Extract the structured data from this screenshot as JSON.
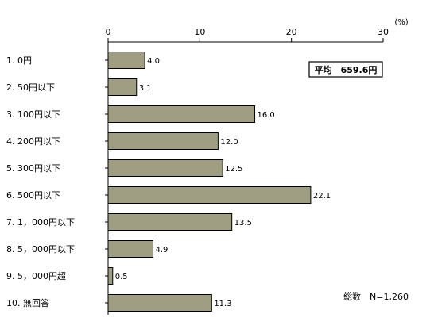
{
  "chart_data": {
    "type": "bar",
    "orientation": "horizontal",
    "categories": [
      "1. 0円",
      "2. 50円以下",
      "3. 100円以下",
      "4. 200円以下",
      "5. 300円以下",
      "6. 500円以下",
      "7. 1，000円以下",
      "8. 5，000円以下",
      "9. 5，000円超",
      "10. 無回答"
    ],
    "values": [
      4.0,
      3.1,
      16.0,
      12.0,
      12.5,
      22.1,
      13.5,
      4.9,
      0.5,
      11.3
    ],
    "value_labels": [
      "4.0",
      "3.1",
      "16.0",
      "12.0",
      "12.5",
      "22.1",
      "13.5",
      "4.9",
      "0.5",
      "11.3"
    ],
    "xlim": [
      0,
      30
    ],
    "xticks": [
      0,
      10,
      20,
      30
    ],
    "unit": "(%)",
    "bar_color": "#a09e82",
    "grid": false
  },
  "annotations": {
    "average": "平均　659.6円",
    "total": "総数　N=1,260"
  }
}
